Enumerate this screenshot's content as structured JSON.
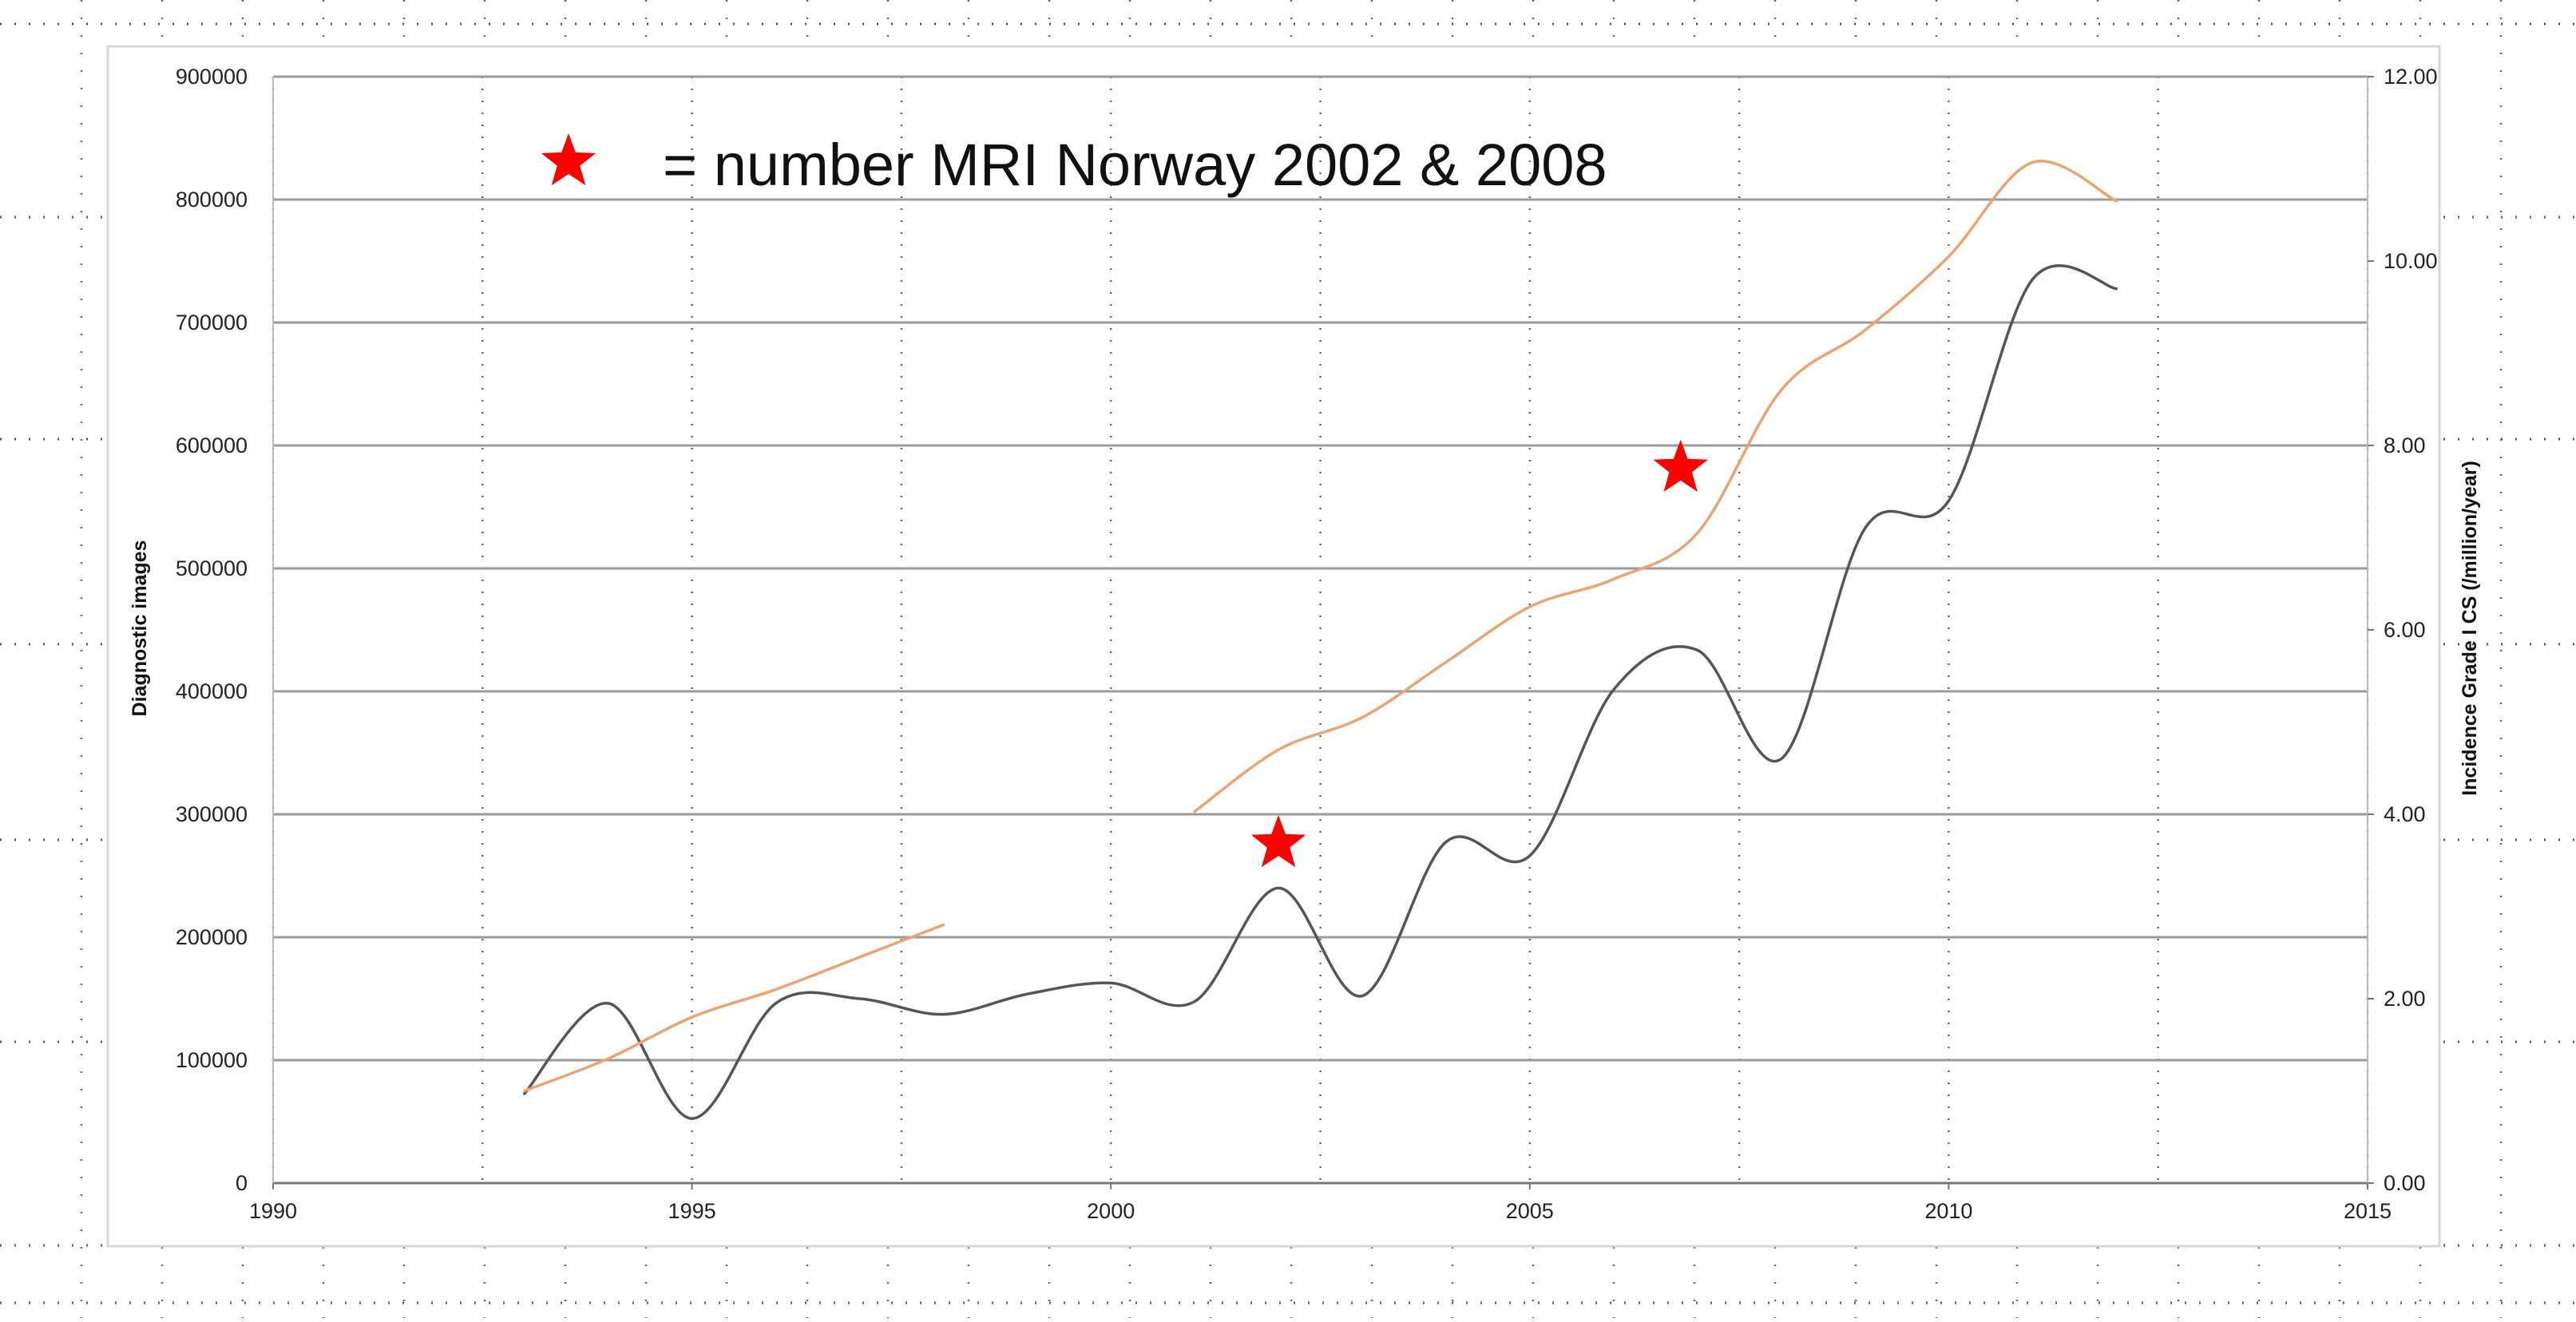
{
  "chart_data": {
    "type": "line",
    "title": "",
    "annotation": "= number MRI Norway 2002 & 2008",
    "xlabel": "",
    "ylabel_left": "Diagnostic images",
    "ylabel_right": "Incidence Grade I CS (/million/year)",
    "xlim": [
      1990,
      2015
    ],
    "ylim_left": [
      0,
      900000
    ],
    "ylim_right": [
      0,
      12
    ],
    "x_ticks": [
      "1990",
      "1995",
      "2000",
      "2005",
      "2010",
      "2015"
    ],
    "y_left_ticks": [
      "0",
      "100000",
      "200000",
      "300000",
      "400000",
      "500000",
      "600000",
      "700000",
      "800000",
      "900000"
    ],
    "y_right_ticks": [
      "0.00",
      "2.00",
      "4.00",
      "6.00",
      "8.00",
      "10.00",
      "12.00"
    ],
    "grid": true,
    "colors": {
      "series_gray": "#555555",
      "series_orange": "#e8a473",
      "star": "#ff0000",
      "grid": "#999999"
    },
    "series": [
      {
        "axis": "right",
        "color": "#555555",
        "points": [
          [
            1993,
            0.97
          ],
          [
            1994,
            1.95
          ],
          [
            1995,
            0.7
          ],
          [
            1996,
            1.95
          ],
          [
            1997,
            2.0
          ],
          [
            1998,
            1.83
          ],
          [
            1999,
            2.05
          ],
          [
            2000,
            2.17
          ],
          [
            2001,
            1.97
          ],
          [
            2002,
            3.2
          ],
          [
            2003,
            2.03
          ],
          [
            2004,
            3.7
          ],
          [
            2005,
            3.55
          ],
          [
            2006,
            5.35
          ],
          [
            2007,
            5.78
          ],
          [
            2008,
            4.6
          ],
          [
            2009,
            7.1
          ],
          [
            2010,
            7.4
          ],
          [
            2011,
            9.8
          ],
          [
            2012,
            9.7
          ]
        ]
      },
      {
        "axis": "right",
        "color": "#e8a473",
        "segments": [
          [
            [
              1993,
              1.0
            ],
            [
              1994,
              1.35
            ],
            [
              1995,
              1.8
            ],
            [
              1996,
              2.1
            ],
            [
              1997,
              2.45
            ],
            [
              1998,
              2.8
            ]
          ],
          [
            [
              2001,
              4.03
            ],
            [
              2002,
              4.7
            ],
            [
              2003,
              5.05
            ],
            [
              2004,
              5.65
            ],
            [
              2005,
              6.25
            ],
            [
              2006,
              6.55
            ],
            [
              2007,
              7.05
            ],
            [
              2008,
              8.6
            ],
            [
              2009,
              9.25
            ],
            [
              2010,
              10.05
            ],
            [
              2011,
              11.07
            ],
            [
              2012,
              10.65
            ]
          ]
        ]
      }
    ],
    "markers": [
      {
        "x": 2002,
        "y_right": 3.68,
        "symbol": "star"
      },
      {
        "x": 2006.8,
        "y_right": 7.75,
        "symbol": "star"
      }
    ]
  }
}
